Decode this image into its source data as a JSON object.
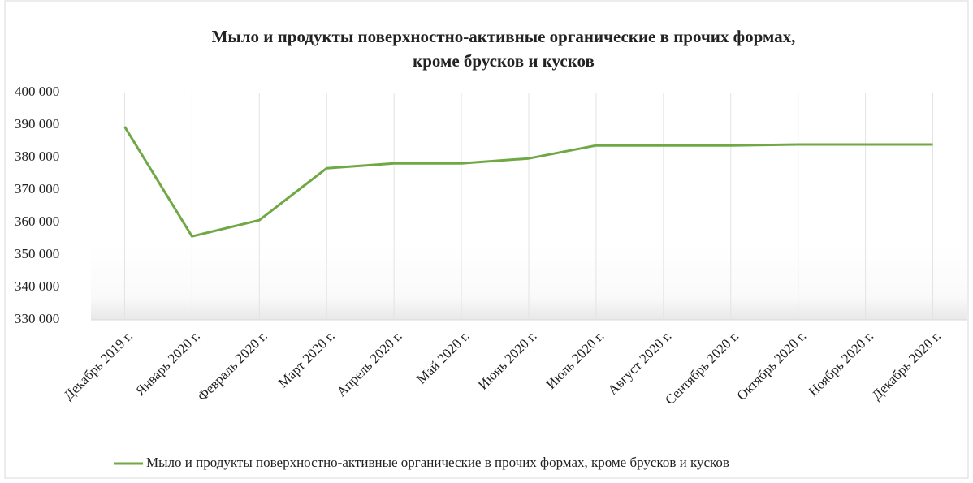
{
  "chart_data": {
    "type": "line",
    "title": [
      "Мыло и продукты поверхностно-активные органические в прочих формах,",
      "кроме брусков и кусков"
    ],
    "categories": [
      "Декабрь 2019 г.",
      "Январь 2020 г.",
      "Февраль 2020 г.",
      "Март 2020 г.",
      "Апрель 2020 г.",
      "Май 2020 г.",
      "Июнь 2020 г.",
      "Июль 2020 г.",
      "Август 2020 г.",
      "Сентябрь 2020 г.",
      "Октябрь 2020 г.",
      "Ноябрь 2020 г.",
      "Декабрь 2020 г."
    ],
    "series": [
      {
        "name": "Мыло и продукты поверхностно-активные органические в прочих формах, кроме брусков и кусков",
        "color": "#70a845",
        "values": [
          389500,
          355700,
          360700,
          376700,
          378200,
          378200,
          379700,
          383700,
          383700,
          383700,
          384000,
          384000,
          384000
        ]
      }
    ],
    "ylim": [
      330000,
      400000
    ],
    "yticks": [
      {
        "value": 330000,
        "label": "330 000"
      },
      {
        "value": 340000,
        "label": "340 000"
      },
      {
        "value": 350000,
        "label": "350 000"
      },
      {
        "value": 360000,
        "label": "360 000"
      },
      {
        "value": 370000,
        "label": "370 000"
      },
      {
        "value": 380000,
        "label": "380 000"
      },
      {
        "value": 390000,
        "label": "390 000"
      },
      {
        "value": 400000,
        "label": "400 000"
      }
    ],
    "grid": true,
    "legend": "bottom"
  }
}
